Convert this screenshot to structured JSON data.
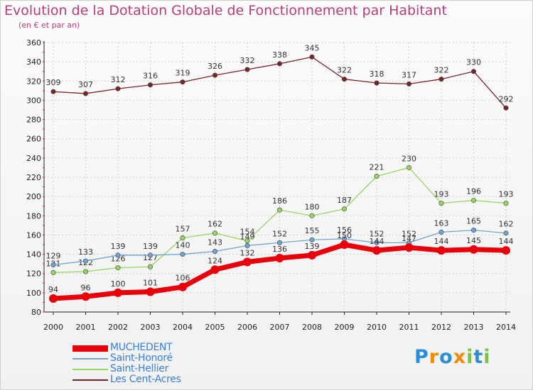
{
  "colors": {
    "title": "#b83c7c",
    "MUCHEDENT": "#e8000b",
    "Saint-Honoré": "#6fa3d4",
    "Saint-Hellier": "#95d65e",
    "Les Cent-Acres": "#7a2329",
    "grid": "#cfcfcf"
  },
  "logo": {
    "text": "Proxiti",
    "letters": [
      "P",
      "r",
      "o",
      "x",
      "i",
      "t",
      "i"
    ],
    "letter_colors": [
      "#2a8fd8",
      "#f08a00",
      "#2a8fd8",
      "#f08a00",
      "#7bc143",
      "#2a8fd8",
      "#7bc143"
    ]
  },
  "chart_data": {
    "type": "line",
    "title": "Evolution de la Dotation Globale de Fonctionnement par Habitant",
    "subtitle": "(en € et par an)",
    "xlabel": "",
    "ylabel": "",
    "x": [
      "2000",
      "2001",
      "2002",
      "2003",
      "2004",
      "2005",
      "2006",
      "2007",
      "2008",
      "2009",
      "2010",
      "2011",
      "2012",
      "2013",
      "2014"
    ],
    "ylim": [
      80,
      360
    ],
    "yticks": [
      80,
      100,
      120,
      140,
      160,
      180,
      200,
      220,
      240,
      260,
      280,
      300,
      320,
      340,
      360
    ],
    "grid": true,
    "legend_position": "bottom-left",
    "series": [
      {
        "name": "MUCHEDENT",
        "values": [
          94,
          96,
          100,
          101,
          106,
          124,
          132,
          136,
          139,
          150,
          144,
          147,
          144,
          145,
          144
        ]
      },
      {
        "name": "Saint-Honoré",
        "values": [
          129,
          133,
          139,
          139,
          140,
          143,
          149,
          152,
          155,
          156,
          152,
          152,
          163,
          165,
          162
        ]
      },
      {
        "name": "Saint-Hellier",
        "values": [
          121,
          122,
          126,
          127,
          157,
          162,
          154,
          186,
          180,
          187,
          221,
          230,
          193,
          196,
          193
        ]
      },
      {
        "name": "Les Cent-Acres",
        "values": [
          309,
          307,
          312,
          316,
          319,
          326,
          332,
          338,
          345,
          322,
          318,
          317,
          322,
          330,
          292
        ]
      }
    ]
  }
}
